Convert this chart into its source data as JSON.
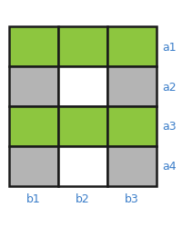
{
  "grid_colors": [
    [
      "green",
      "green",
      "green"
    ],
    [
      "gray",
      "white",
      "gray"
    ],
    [
      "green",
      "green",
      "green"
    ],
    [
      "gray",
      "white",
      "gray"
    ]
  ],
  "row_labels": [
    "a1",
    "a2",
    "a3",
    "a4"
  ],
  "col_labels": [
    "b1",
    "b2",
    "b3"
  ],
  "green_color": "#8DC63F",
  "gray_color": "#B4B4B4",
  "white_color": "#FFFFFF",
  "border_color": "#1A1A1A",
  "label_color": "#3A7DC9",
  "background_color": "#FFFFFF",
  "border_lw": 1.8,
  "label_fontsize": 9,
  "label_font": "DejaVu Sans"
}
